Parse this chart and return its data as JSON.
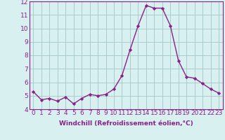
{
  "x": [
    0,
    1,
    2,
    3,
    4,
    5,
    6,
    7,
    8,
    9,
    10,
    11,
    12,
    13,
    14,
    15,
    16,
    17,
    18,
    19,
    20,
    21,
    22,
    23
  ],
  "y": [
    5.3,
    4.7,
    4.8,
    4.6,
    4.9,
    4.4,
    4.8,
    5.1,
    5.0,
    5.1,
    5.5,
    6.5,
    8.4,
    10.2,
    11.7,
    11.5,
    11.5,
    10.2,
    7.6,
    6.4,
    6.3,
    5.9,
    5.5,
    5.2
  ],
  "line_color": "#882288",
  "marker": "D",
  "marker_size": 2.2,
  "bg_color": "#d8f0f0",
  "grid_color": "#aacccc",
  "axis_color": "#882288",
  "xlabel": "Windchill (Refroidissement éolien,°C)",
  "xlabel_fontsize": 6.5,
  "tick_fontsize": 6.5,
  "ylim": [
    4,
    12
  ],
  "yticks": [
    4,
    5,
    6,
    7,
    8,
    9,
    10,
    11,
    12
  ],
  "xticks": [
    0,
    1,
    2,
    3,
    4,
    5,
    6,
    7,
    8,
    9,
    10,
    11,
    12,
    13,
    14,
    15,
    16,
    17,
    18,
    19,
    20,
    21,
    22,
    23
  ],
  "spine_color": "#882288",
  "line_width": 1.0
}
